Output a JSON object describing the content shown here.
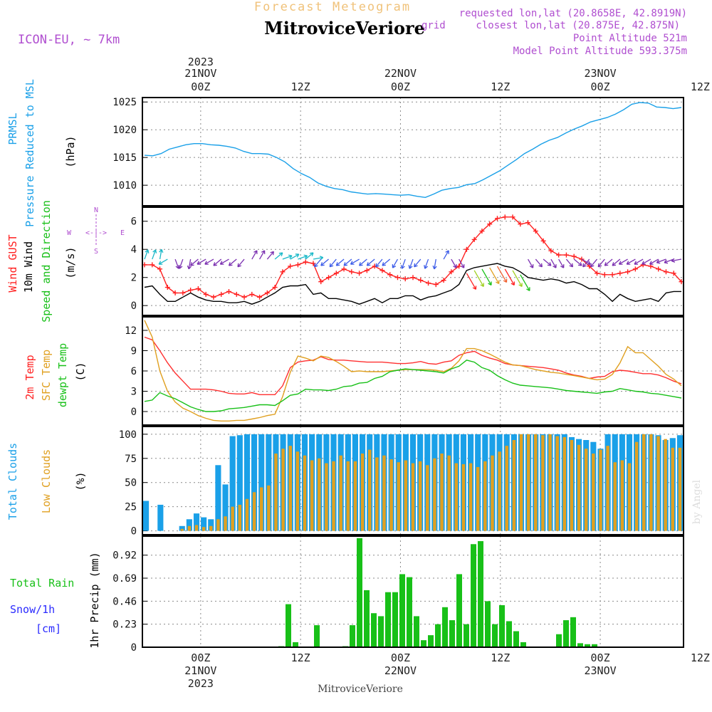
{
  "header": {
    "overline": "Forecast Meteogram",
    "station": "MitroviceVeriore",
    "model": "ICON-EU, ~ 7km",
    "requested": "requested lon,lat (20.8658E, 42.8919N)",
    "closest_prefix": "grid",
    "closest": "closest lon,lat (20.875E, 42.875N)",
    "point_alt": "Point Altitude 521m",
    "model_alt": "Model Point Altitude 593.375m"
  },
  "footer": {
    "station": "MitroviceVeriore",
    "credit": "by Angel"
  },
  "time_axis": {
    "hours_total": 65,
    "ticks": [
      {
        "h": 7,
        "lab": "00Z",
        "day": "21NOV",
        "year": "2023"
      },
      {
        "h": 19,
        "lab": "12Z",
        "day": "",
        "year": ""
      },
      {
        "h": 31,
        "lab": "00Z",
        "day": "22NOV",
        "year": ""
      },
      {
        "h": 43,
        "lab": "12Z",
        "day": "",
        "year": ""
      },
      {
        "h": 55,
        "lab": "00Z",
        "day": "23NOV",
        "year": ""
      },
      {
        "h": 67,
        "lab": "12Z",
        "day": "",
        "year": ""
      }
    ]
  },
  "panels": {
    "pressure": {
      "labels": [
        "PRMSL",
        "Pressure Reduced to MSL",
        "(hPa)"
      ],
      "label_colors": [
        "#1aa0e8",
        "#1aa0e8",
        "#000000"
      ],
      "yticks": [
        1010,
        1015,
        1020,
        1025
      ],
      "ylim": [
        1006.3,
        1025.8
      ],
      "series": [
        {
          "name": "PRMSL",
          "color": "#1aa0e8",
          "values": [
            1015.4,
            1015.3,
            1015.7,
            1016.5,
            1016.9,
            1017.3,
            1017.5,
            1017.5,
            1017.3,
            1017.2,
            1017.0,
            1016.7,
            1016.1,
            1015.7,
            1015.7,
            1015.6,
            1015.0,
            1014.2,
            1013.0,
            1012.1,
            1011.4,
            1010.4,
            1009.8,
            1009.4,
            1009.2,
            1008.8,
            1008.6,
            1008.4,
            1008.5,
            1008.4,
            1008.3,
            1008.2,
            1008.3,
            1008.0,
            1007.8,
            1008.4,
            1009.1,
            1009.4,
            1009.6,
            1010.1,
            1010.3,
            1011.0,
            1011.8,
            1012.6,
            1013.6,
            1014.6,
            1015.7,
            1016.5,
            1017.4,
            1018.1,
            1018.6,
            1019.4,
            1020.1,
            1020.7,
            1021.4,
            1021.8,
            1022.2,
            1022.8,
            1023.6,
            1024.6,
            1024.9,
            1024.8,
            1024.1,
            1024.0,
            1023.8,
            1024.0
          ]
        }
      ]
    },
    "wind": {
      "labels": [
        "Wind GUST",
        "10m Wind",
        "Speed and Direction",
        "(m/s)"
      ],
      "label_colors": [
        "#ff2020",
        "#000000",
        "#18c018",
        "#000000"
      ],
      "compass": {
        "n": "N",
        "s": "S",
        "w": "W",
        "e": "E"
      },
      "yticks": [
        0,
        2,
        4,
        6
      ],
      "ylim": [
        -0.7,
        7.0
      ],
      "series": [
        {
          "name": "Wind GUST",
          "color": "#ff2020",
          "values": [
            2.9,
            2.9,
            2.6,
            1.3,
            0.9,
            0.9,
            1.1,
            1.2,
            0.8,
            0.6,
            0.8,
            1.0,
            0.8,
            0.6,
            0.8,
            0.6,
            0.9,
            1.3,
            2.4,
            2.8,
            2.9,
            3.1,
            3.0,
            1.7,
            2.0,
            2.3,
            2.6,
            2.4,
            2.3,
            2.5,
            2.8,
            2.5,
            2.2,
            2.0,
            1.9,
            2.0,
            1.8,
            1.6,
            1.5,
            1.8,
            2.4,
            2.8,
            4.0,
            4.7,
            5.3,
            5.8,
            6.2,
            6.3,
            6.3,
            5.8,
            5.9,
            5.3,
            4.6,
            3.9,
            3.6,
            3.6,
            3.5,
            3.3,
            2.8,
            2.3,
            2.2,
            2.2,
            2.3,
            2.4,
            2.6,
            2.9,
            2.8,
            2.6,
            2.4,
            2.3,
            1.7
          ]
        },
        {
          "name": "10m Wind",
          "color": "#000000",
          "values": [
            1.3,
            1.4,
            0.8,
            0.3,
            0.3,
            0.6,
            0.9,
            0.6,
            0.4,
            0.3,
            0.3,
            0.2,
            0.2,
            0.3,
            0.1,
            0.3,
            0.6,
            0.9,
            1.3,
            1.4,
            1.4,
            1.5,
            0.8,
            0.9,
            0.5,
            0.5,
            0.4,
            0.3,
            0.1,
            0.3,
            0.5,
            0.2,
            0.5,
            0.5,
            0.7,
            0.7,
            0.4,
            0.6,
            0.7,
            0.9,
            1.1,
            1.5,
            2.5,
            2.7,
            2.8,
            2.9,
            3.0,
            2.8,
            2.7,
            2.4,
            2.0,
            1.9,
            1.8,
            1.9,
            1.8,
            1.6,
            1.7,
            1.5,
            1.2,
            1.2,
            0.8,
            0.3,
            0.8,
            0.5,
            0.3,
            0.4,
            0.5,
            0.3,
            0.9,
            1.0,
            1.0
          ]
        },
        {
          "name": "barbs_dir",
          "color": "#7a2fb0",
          "values": [
            200,
            200,
            190,
            60,
            340,
            20,
            10,
            50,
            60,
            60,
            50,
            60,
            50,
            40,
            210,
            210,
            220,
            230,
            250,
            240,
            250,
            230,
            260,
            40,
            50,
            40,
            50,
            50,
            60,
            50,
            50,
            40,
            50,
            30,
            20,
            20,
            40,
            20,
            10,
            210,
            330,
            330,
            330,
            330,
            330,
            330,
            330,
            330,
            330,
            330,
            330,
            320,
            310,
            330,
            330,
            320,
            310,
            300,
            40,
            40,
            40,
            50,
            50,
            60,
            60,
            60,
            60,
            60,
            70,
            70,
            80
          ]
        }
      ]
    },
    "temp": {
      "labels": [
        "2m Temp",
        "SFC Temp",
        "dewpt Temp",
        "(C)"
      ],
      "label_colors": [
        "#ff2020",
        "#e0a020",
        "#18c018",
        "#000000"
      ],
      "yticks": [
        0,
        3,
        6,
        9,
        12
      ],
      "ylim": [
        -2.0,
        14.0
      ],
      "series": [
        {
          "name": "2m Temp",
          "color": "#ff3030",
          "values": [
            11.0,
            10.6,
            9.0,
            7.2,
            5.7,
            4.5,
            3.3,
            3.3,
            3.3,
            3.2,
            3.0,
            2.7,
            2.6,
            2.6,
            2.8,
            2.5,
            2.5,
            2.5,
            3.8,
            6.5,
            7.3,
            7.5,
            7.6,
            8.1,
            7.7,
            7.6,
            7.6,
            7.5,
            7.4,
            7.3,
            7.3,
            7.3,
            7.2,
            7.1,
            7.1,
            7.2,
            7.4,
            7.1,
            7.0,
            7.3,
            7.5,
            8.3,
            8.7,
            8.9,
            8.3,
            7.9,
            7.6,
            7.1,
            6.9,
            6.8,
            6.7,
            6.6,
            6.5,
            6.3,
            6.1,
            5.7,
            5.4,
            5.2,
            4.9,
            5.1,
            5.2,
            5.9,
            6.1,
            6.0,
            5.8,
            5.6,
            5.6,
            5.4,
            5.0,
            4.5,
            4.1
          ]
        },
        {
          "name": "SFC Temp",
          "color": "#e0a020",
          "values": [
            13.5,
            11.0,
            6.0,
            3.0,
            1.4,
            0.5,
            0.0,
            -0.6,
            -1.0,
            -1.3,
            -1.4,
            -1.4,
            -1.3,
            -1.3,
            -1.1,
            -0.9,
            -0.6,
            -0.4,
            2.2,
            5.8,
            8.2,
            7.9,
            7.5,
            8.2,
            8.0,
            7.4,
            6.7,
            5.9,
            6.0,
            5.9,
            5.9,
            5.9,
            6.0,
            6.1,
            6.2,
            6.2,
            6.2,
            6.2,
            6.1,
            5.9,
            6.4,
            7.5,
            9.3,
            9.3,
            9.0,
            8.5,
            7.9,
            7.3,
            6.9,
            6.8,
            6.5,
            6.2,
            6.0,
            5.8,
            5.7,
            5.5,
            5.3,
            5.1,
            4.9,
            4.7,
            4.8,
            5.5,
            7.2,
            9.6,
            8.7,
            8.7,
            7.7,
            6.7,
            5.5,
            4.8,
            3.8
          ]
        },
        {
          "name": "dewpt Temp",
          "color": "#18c018",
          "values": [
            1.5,
            1.7,
            2.8,
            2.3,
            1.9,
            1.3,
            0.7,
            0.3,
            0.0,
            0.0,
            0.1,
            0.4,
            0.5,
            0.6,
            0.8,
            1.0,
            1.0,
            0.9,
            1.6,
            2.4,
            2.6,
            3.3,
            3.2,
            3.2,
            3.1,
            3.3,
            3.7,
            3.8,
            4.2,
            4.3,
            4.9,
            5.2,
            5.9,
            6.1,
            6.3,
            6.2,
            6.1,
            6.0,
            5.9,
            5.7,
            6.3,
            6.7,
            7.6,
            7.3,
            6.5,
            6.1,
            5.3,
            4.7,
            4.2,
            3.9,
            3.8,
            3.7,
            3.6,
            3.5,
            3.3,
            3.1,
            3.0,
            2.9,
            2.8,
            2.7,
            2.9,
            3.0,
            3.4,
            3.2,
            3.0,
            2.9,
            2.7,
            2.6,
            2.4,
            2.2,
            2.0
          ]
        }
      ]
    },
    "clouds": {
      "labels": [
        "Total Clouds",
        "Low Clouds",
        "(%)"
      ],
      "label_colors": [
        "#1aa0e8",
        "#e0a020",
        "#000000"
      ],
      "yticks": [
        0,
        25,
        50,
        75,
        100
      ],
      "ylim": [
        -4,
        108
      ],
      "series": [
        {
          "name": "Total Clouds",
          "color": "#1aa0e8",
          "values": [
            31,
            0,
            27,
            0,
            0,
            5,
            12,
            18,
            14,
            12,
            68,
            48,
            98,
            99,
            100,
            100,
            100,
            100,
            100,
            100,
            100,
            100,
            100,
            100,
            100,
            100,
            100,
            100,
            100,
            100,
            100,
            100,
            100,
            100,
            100,
            100,
            100,
            100,
            100,
            100,
            100,
            100,
            100,
            100,
            100,
            100,
            100,
            100,
            100,
            100,
            100,
            100,
            100,
            100,
            100,
            100,
            100,
            100,
            100,
            97,
            95,
            94,
            92,
            85,
            100,
            100,
            100,
            100,
            100,
            100,
            100,
            99,
            94,
            96,
            99
          ]
        },
        {
          "name": "Low Clouds",
          "color": "#e0a020",
          "values": [
            0,
            0,
            0,
            0,
            0,
            2,
            5,
            6,
            4,
            5,
            12,
            15,
            25,
            27,
            33,
            40,
            45,
            47,
            80,
            85,
            88,
            82,
            78,
            73,
            75,
            70,
            72,
            78,
            72,
            72,
            80,
            84,
            76,
            78,
            74,
            71,
            73,
            70,
            72,
            68,
            75,
            80,
            78,
            70,
            69,
            70,
            66,
            72,
            78,
            82,
            88,
            94,
            100,
            100,
            100,
            99,
            100,
            98,
            97,
            94,
            89,
            85,
            80,
            84,
            88,
            71,
            73,
            70,
            92,
            100,
            100,
            98,
            95,
            86,
            86,
            88
          ]
        }
      ]
    },
    "precip": {
      "labels": [
        "Total Rain",
        "Snow/1h",
        "[cm]",
        "1hr Precip (mm)"
      ],
      "label_colors": [
        "#18c018",
        "#2a2aff",
        "#2a2aff",
        "#000000"
      ],
      "yticks": [
        "0",
        "0.23",
        "0.46",
        "0.69",
        "0.92"
      ],
      "ytick_values": [
        0,
        0.23,
        0.46,
        0.69,
        0.92
      ],
      "ylim": [
        0,
        1.11
      ],
      "series": [
        {
          "name": "1hr Precip",
          "color": "#18c018",
          "values": [
            0,
            0,
            0,
            0,
            0,
            0,
            0,
            0,
            0,
            0,
            0,
            0,
            0,
            0,
            0,
            0,
            0,
            0,
            0,
            0.01,
            0.43,
            0.05,
            0,
            0,
            0.22,
            0,
            0,
            0,
            0.01,
            0.22,
            1.09,
            0.57,
            0.34,
            0.31,
            0.55,
            0.55,
            0.73,
            0.7,
            0.31,
            0.07,
            0.12,
            0.23,
            0.4,
            0.27,
            0.73,
            0.23,
            1.03,
            1.06,
            0.46,
            0.23,
            0.42,
            0.26,
            0.16,
            0.05,
            0,
            0,
            0,
            0,
            0.13,
            0.27,
            0.3,
            0.04,
            0.03,
            0.03,
            0,
            0,
            0,
            0,
            0,
            0,
            0,
            0,
            0,
            0,
            0,
            0
          ]
        }
      ]
    }
  }
}
